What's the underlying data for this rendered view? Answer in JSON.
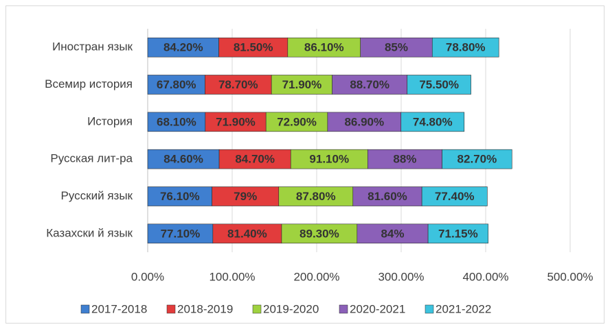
{
  "chart_data": {
    "type": "stacked_barh",
    "categories": [
      "Иностран язык",
      "Всемир история",
      "История",
      "Русская лит-ра",
      "Русский язык",
      "Казахски й язык"
    ],
    "series": [
      {
        "name": "2017-2018",
        "color": "#3f7fd0",
        "values": [
          84.2,
          67.8,
          68.1,
          84.6,
          76.1,
          77.1
        ],
        "value_labels": [
          "84.20%",
          "67.80%",
          "68.10%",
          "84.60%",
          "76.10%",
          "77.10%"
        ]
      },
      {
        "name": "2018-2019",
        "color": "#e23c3c",
        "values": [
          81.5,
          78.7,
          71.9,
          84.7,
          79,
          81.4
        ],
        "value_labels": [
          "81.50%",
          "78.70%",
          "71.90%",
          "84.70%",
          "79%",
          "81.40%"
        ]
      },
      {
        "name": "2019-2020",
        "color": "#9fd23f",
        "values": [
          86.1,
          71.9,
          72.9,
          91.1,
          87.8,
          89.3
        ],
        "value_labels": [
          "86.10%",
          "71.90%",
          "72.90%",
          "91.10%",
          "87.80%",
          "89.30%"
        ]
      },
      {
        "name": "2020-2021",
        "color": "#8b60b8",
        "values": [
          85,
          88.7,
          86.9,
          88,
          81.6,
          84
        ],
        "value_labels": [
          "85%",
          "88.70%",
          "86.90%",
          "88%",
          "81.60%",
          "84%"
        ]
      },
      {
        "name": "2021-2022",
        "color": "#3cc3de",
        "values": [
          78.8,
          75.5,
          74.8,
          82.7,
          77.4,
          71.15
        ],
        "value_labels": [
          "78.80%",
          "75.50%",
          "74.80%",
          "82.70%",
          "77.40%",
          "71.15%"
        ]
      }
    ],
    "xlim": [
      0,
      500
    ],
    "xticks": [
      {
        "value": 0,
        "label": "0.00%"
      },
      {
        "value": 100,
        "label": "100.00%"
      },
      {
        "value": 200,
        "label": "200.00%"
      },
      {
        "value": 300,
        "label": "300.00%"
      },
      {
        "value": 400,
        "label": "400.00%"
      },
      {
        "value": 500,
        "label": "500.00%"
      }
    ],
    "grid": true,
    "legend": "bottom"
  }
}
